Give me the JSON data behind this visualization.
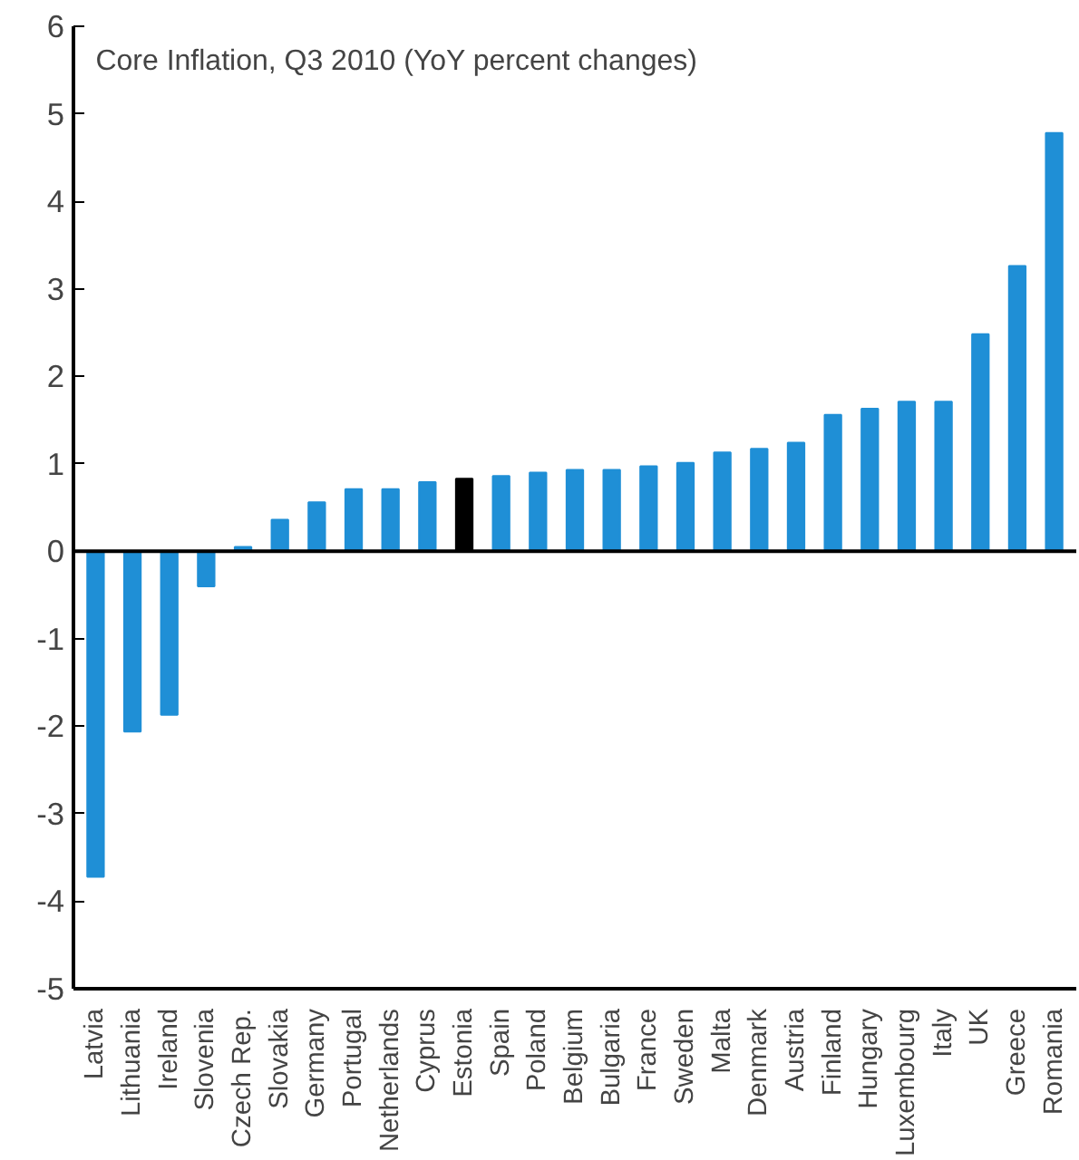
{
  "chart_data": {
    "type": "bar",
    "title": "Core Inflation, Q3 2010 (YoY percent changes)",
    "categories": [
      "Latvia",
      "Lithuania",
      "Ireland",
      "Slovenia",
      "Czech Rep.",
      "Slovakia",
      "Germany",
      "Portugal",
      "Netherlands",
      "Cyprus",
      "Estonia",
      "Spain",
      "Poland",
      "Belgium",
      "Bulgaria",
      "France",
      "Sweden",
      "Malta",
      "Denmark",
      "Austria",
      "Finland",
      "Hungary",
      "Luxembourg",
      "Italy",
      "UK",
      "Greece",
      "Romania"
    ],
    "values": [
      -3.72,
      -2.06,
      -1.87,
      -0.4,
      0.05,
      0.36,
      0.56,
      0.71,
      0.71,
      0.79,
      0.83,
      0.86,
      0.9,
      0.93,
      0.93,
      0.97,
      1.01,
      1.13,
      1.17,
      1.24,
      1.56,
      1.63,
      1.71,
      1.71,
      2.48,
      3.26,
      4.78
    ],
    "colors": [
      "#1f8fd6",
      "#1f8fd6",
      "#1f8fd6",
      "#1f8fd6",
      "#1f8fd6",
      "#1f8fd6",
      "#1f8fd6",
      "#1f8fd6",
      "#1f8fd6",
      "#1f8fd6",
      "#000000",
      "#1f8fd6",
      "#1f8fd6",
      "#1f8fd6",
      "#1f8fd6",
      "#1f8fd6",
      "#1f8fd6",
      "#1f8fd6",
      "#1f8fd6",
      "#1f8fd6",
      "#1f8fd6",
      "#1f8fd6",
      "#1f8fd6",
      "#1f8fd6",
      "#1f8fd6",
      "#1f8fd6",
      "#1f8fd6"
    ],
    "ylim": [
      -5,
      6
    ],
    "yticks": [
      -5,
      -4,
      -3,
      -2,
      -1,
      0,
      1,
      2,
      3,
      4,
      5,
      6
    ]
  }
}
